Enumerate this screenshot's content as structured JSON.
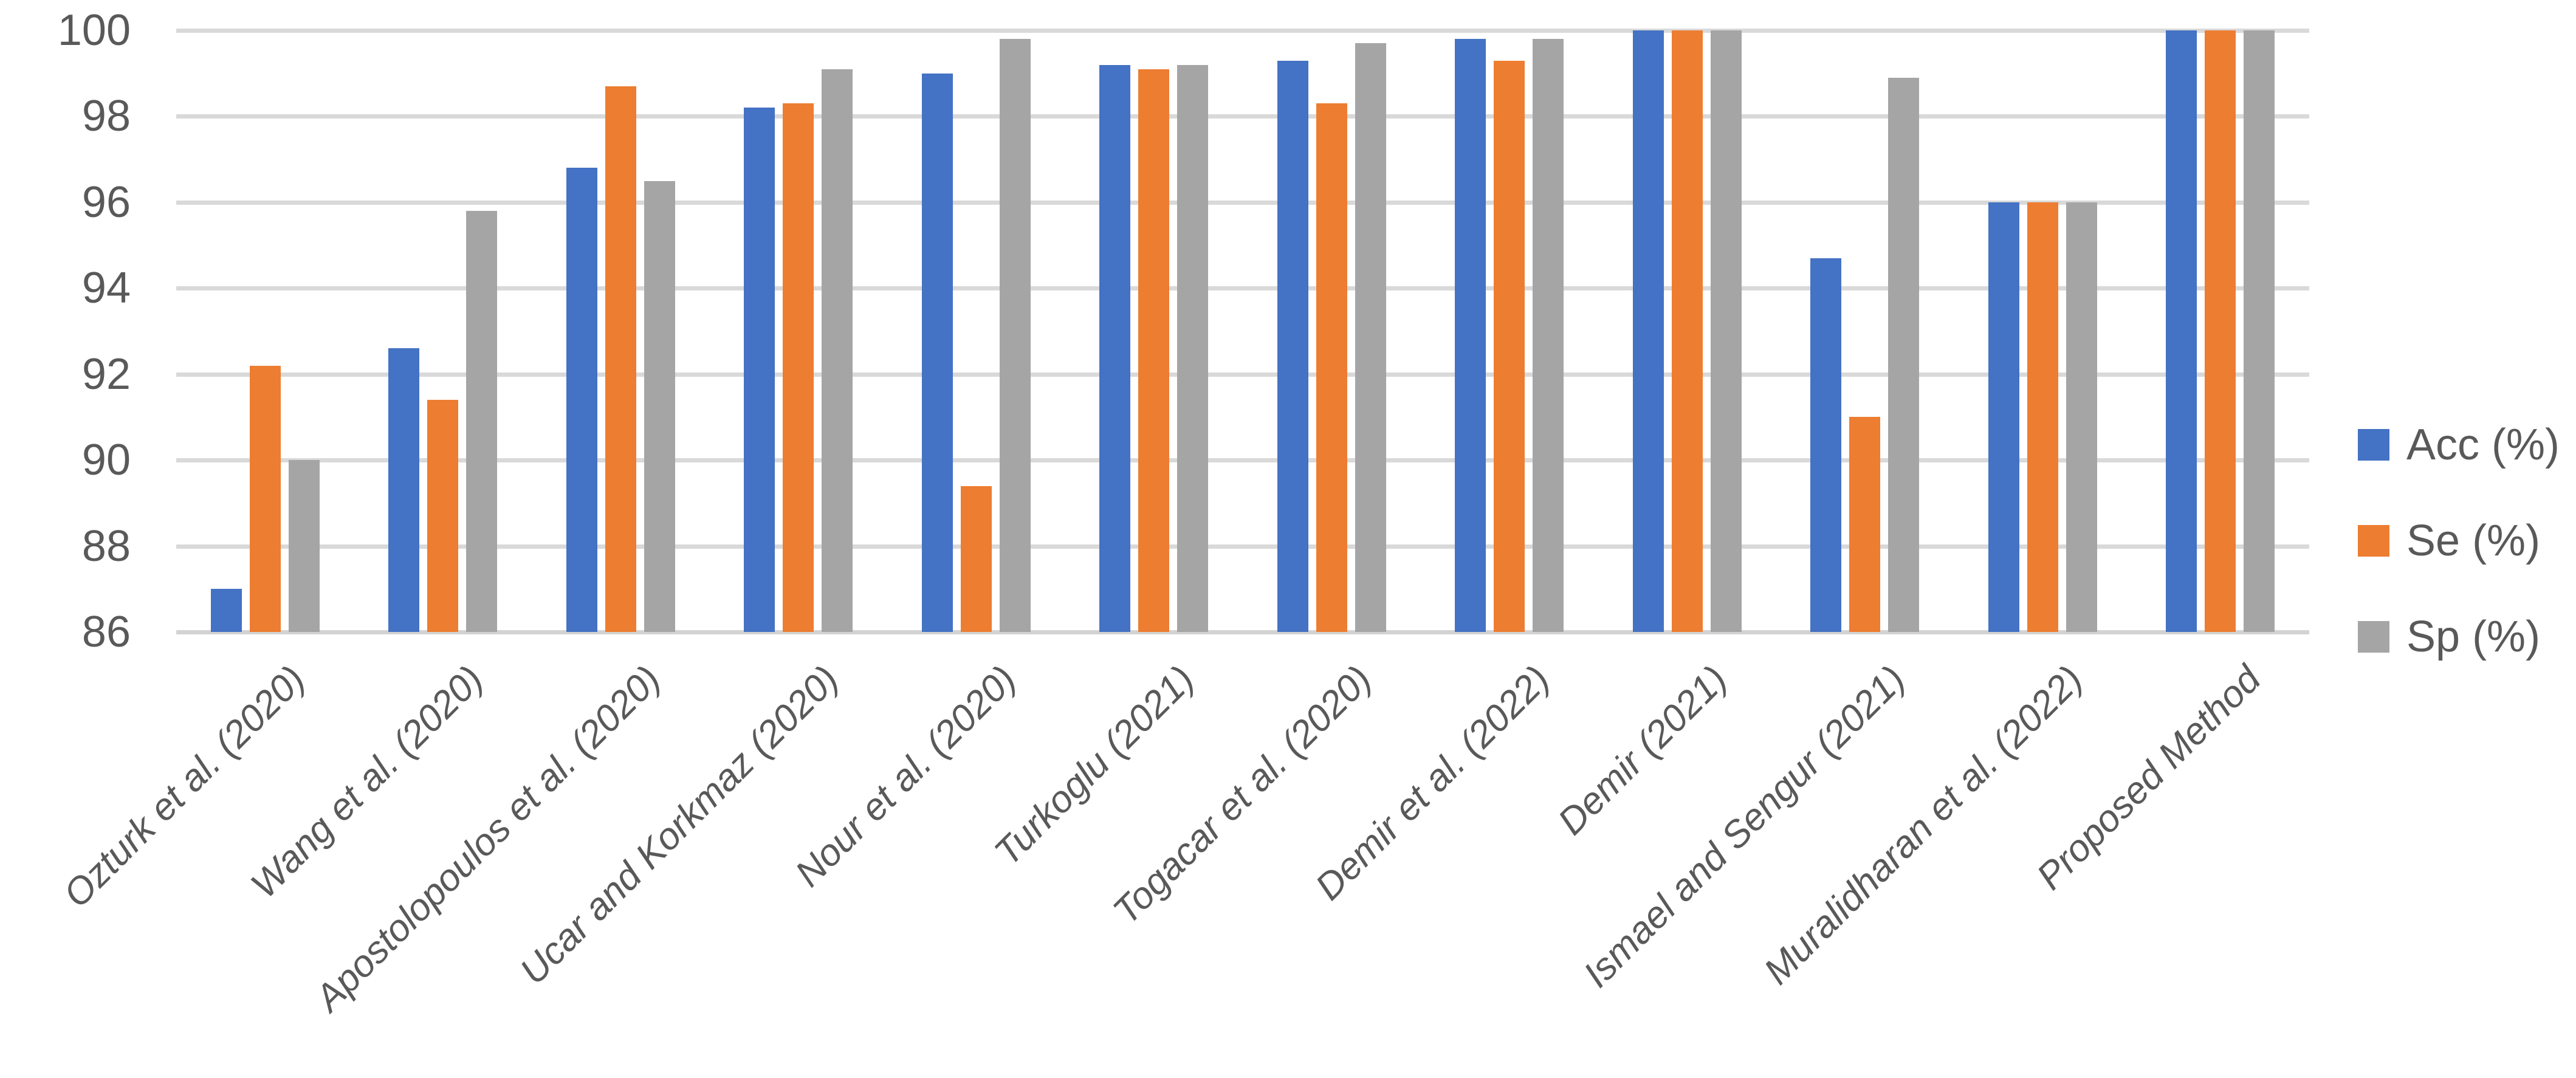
{
  "chart_data": {
    "type": "bar",
    "title": "",
    "xlabel": "",
    "ylabel": "",
    "categories": [
      "Ozturk et al. (2020)",
      "Wang et al. (2020)",
      "Apostolopoulos et al. (2020)",
      "Ucar and Korkmaz (2020)",
      "Nour et al. (2020)",
      "Turkoglu (2021)",
      "Togacar et al. (2020)",
      "Demir et al. (2022)",
      "Demir (2021)",
      "Ismael and Sengur (2021)",
      "Muralidharan et al. (2022)",
      "Proposed Method"
    ],
    "series": [
      {
        "name": "Acc (%)",
        "color": "#4472C4",
        "values": [
          87.0,
          92.6,
          96.8,
          98.2,
          99.0,
          99.2,
          99.3,
          99.8,
          100,
          94.7,
          96.0,
          100
        ]
      },
      {
        "name": "Se (%)",
        "color": "#ED7D31",
        "values": [
          92.2,
          91.4,
          98.7,
          98.3,
          89.4,
          99.1,
          98.3,
          99.3,
          100,
          91.0,
          96.0,
          100
        ]
      },
      {
        "name": "Sp (%)",
        "color": "#A5A5A5",
        "values": [
          90.0,
          95.8,
          96.5,
          99.1,
          99.8,
          99.2,
          99.7,
          99.8,
          100,
          98.9,
          96.0,
          100
        ]
      }
    ],
    "ylim": [
      86,
      100
    ],
    "yticks": [
      100,
      98,
      96,
      94,
      92,
      90,
      88,
      86
    ],
    "grid": true,
    "legend_position": "right",
    "colors": {
      "axis_text": "#595959",
      "gridline": "#D9D9D9",
      "background": "#FFFFFF"
    }
  }
}
